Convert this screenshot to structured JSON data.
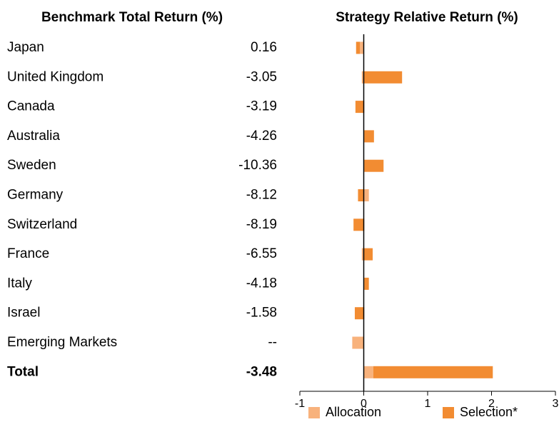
{
  "table": {
    "title": "Benchmark Total Return (%)",
    "rows": [
      [
        "Japan",
        "0.16"
      ],
      [
        "United Kingdom",
        "-3.05"
      ],
      [
        "Canada",
        "-3.19"
      ],
      [
        "Australia",
        "-4.26"
      ],
      [
        "Sweden",
        "-10.36"
      ],
      [
        "Germany",
        "-8.12"
      ],
      [
        "Switzerland",
        "-8.19"
      ],
      [
        "France",
        "-6.55"
      ],
      [
        "Italy",
        "-4.18"
      ],
      [
        "Israel",
        "-1.58"
      ],
      [
        "Emerging Markets",
        "--"
      ],
      [
        "Total",
        "-3.48"
      ]
    ]
  },
  "chart_data": {
    "type": "bar",
    "orientation": "horizontal",
    "stacked": true,
    "title": "Strategy Relative Return (%)",
    "series": [
      {
        "name": "Allocation",
        "color": "#f8b27c",
        "values": [
          -0.06,
          -0.03,
          0.01,
          0.01,
          0.01,
          0.08,
          0.01,
          -0.03,
          0.01,
          0.01,
          -0.18,
          0.15
        ]
      },
      {
        "name": "Selection*",
        "color": "#f28c32",
        "values": [
          -0.06,
          0.6,
          -0.13,
          0.15,
          0.3,
          -0.09,
          -0.16,
          0.14,
          0.07,
          -0.14,
          0,
          1.87
        ]
      }
    ],
    "xlim": [
      -1,
      3
    ],
    "xticks": [
      -1,
      0,
      1,
      2,
      3
    ],
    "legend": "bottom"
  }
}
